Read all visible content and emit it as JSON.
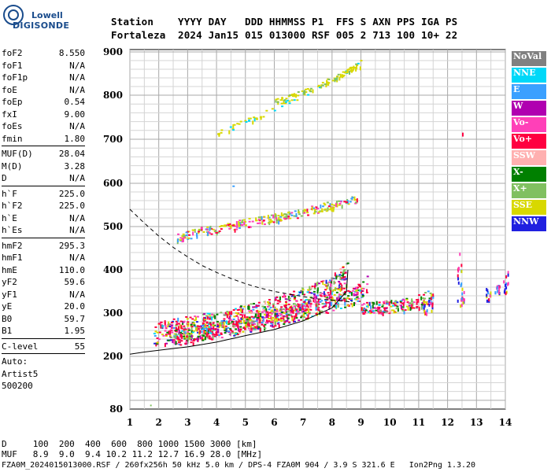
{
  "logo": {
    "line1": "Lowell",
    "line2": "DIGISONDE"
  },
  "header": {
    "line1": "Station    YYYY DAY   DDD HHMMSS P1  FFS S AXN PPS IGA PS",
    "line2": "Fortaleza  2024 Jan15 015 013000 RSF 005 2 713 100 10+ 22"
  },
  "params": [
    {
      "k": "foF2",
      "v": "8.550"
    },
    {
      "k": "foF1",
      "v": "N/A"
    },
    {
      "k": "foF1p",
      "v": "N/A"
    },
    {
      "k": "foE",
      "v": "N/A"
    },
    {
      "k": "foEp",
      "v": "0.54"
    },
    {
      "k": "fxI",
      "v": "9.00"
    },
    {
      "k": "foEs",
      "v": "N/A"
    },
    {
      "k": "fmin",
      "v": "1.80"
    },
    {
      "sep": true
    },
    {
      "k": "MUF(D)",
      "v": "28.04"
    },
    {
      "k": "M(D)",
      "v": "3.28"
    },
    {
      "k": "D",
      "v": "N/A"
    },
    {
      "sep": true
    },
    {
      "k": "h`F",
      "v": "225.0"
    },
    {
      "k": "h`F2",
      "v": "225.0"
    },
    {
      "k": "h`E",
      "v": "N/A"
    },
    {
      "k": "h`Es",
      "v": "N/A"
    },
    {
      "sep": true
    },
    {
      "k": "hmF2",
      "v": "295.3"
    },
    {
      "k": "hmF1",
      "v": "N/A"
    },
    {
      "k": "hmE",
      "v": "110.0"
    },
    {
      "k": "yF2",
      "v": "59.6"
    },
    {
      "k": "yF1",
      "v": "N/A"
    },
    {
      "k": "yE",
      "v": "20.0"
    },
    {
      "k": "B0",
      "v": "59.7"
    },
    {
      "k": "B1",
      "v": "1.95"
    },
    {
      "sep": true
    },
    {
      "k": "C-level",
      "v": "55"
    },
    {
      "sep": true
    },
    {
      "k": "Auto:",
      "v": ""
    },
    {
      "k": "Artist5",
      "v": ""
    },
    {
      "k": "500200",
      "v": ""
    }
  ],
  "legend": [
    {
      "label": "NoVal",
      "color": "#808080"
    },
    {
      "label": "NNE",
      "color": "#00d8f8"
    },
    {
      "label": "E",
      "color": "#3aa0ff"
    },
    {
      "label": "W",
      "color": "#b000b0"
    },
    {
      "label": "Vo-",
      "color": "#ff40b8"
    },
    {
      "label": "Vo+",
      "color": "#ff0040"
    },
    {
      "label": "SSW",
      "color": "#ffb0b0"
    },
    {
      "label": "X-",
      "color": "#008000"
    },
    {
      "label": "X+",
      "color": "#80c060"
    },
    {
      "label": "SSE",
      "color": "#d8d800"
    },
    {
      "label": "NNW",
      "color": "#2020e0"
    }
  ],
  "footer": {
    "line1": "D     100  200  400  600  800 1000 1500 3000 [km]",
    "line2": "MUF   8.9  9.0  9.4 10.2 11.2 12.7 16.9 28.0 [MHz]",
    "line3": "FZA0M_2024015013000.RSF / 260fx256h 50 kHz 5.0 km / DPS-4 FZA0M 904 / 3.9 S 321.6 E   Ion2Png 1.3.20"
  },
  "chart_data": {
    "type": "scatter",
    "xlim": [
      1,
      14
    ],
    "ylim": [
      80,
      900
    ],
    "x_ticks": [
      1,
      2,
      3,
      4,
      5,
      6,
      7,
      8,
      9,
      10,
      11,
      12,
      13,
      14
    ],
    "y_ticks": [
      80,
      200,
      300,
      400,
      500,
      600,
      700,
      800,
      900
    ],
    "grid": true,
    "profile_curve": {
      "x": [
        1.0,
        1.5,
        2.0,
        3.0,
        4.0,
        5.0,
        6.0,
        7.0,
        8.0,
        8.5,
        8.55
      ],
      "y": [
        205,
        210,
        214,
        222,
        233,
        248,
        262,
        282,
        312,
        350,
        400
      ]
    },
    "muf_curve": {
      "x": [
        1.0,
        1.5,
        2.0,
        2.5,
        3.0,
        3.5,
        4.0,
        4.5,
        5.0,
        5.5,
        6.0,
        6.5,
        7.0,
        7.5,
        8.0,
        8.5,
        8.6
      ],
      "y": [
        540,
        508,
        478,
        452,
        430,
        410,
        394,
        380,
        368,
        358,
        350,
        344,
        338,
        333,
        330,
        327,
        326
      ]
    },
    "traces": [
      {
        "name": "O-F2",
        "x": [
          1.8,
          2.5,
          3,
          3.5,
          4,
          4.5,
          5,
          5.5,
          6,
          6.5,
          7,
          7.5,
          8,
          8.5,
          8.55
        ],
        "y": [
          235,
          240,
          246,
          252,
          258,
          264,
          272,
          280,
          290,
          300,
          312,
          326,
          344,
          370,
          400
        ]
      },
      {
        "name": "X-F2",
        "x": [
          2.5,
          3,
          3.5,
          4,
          4.5,
          5,
          5.5,
          6,
          6.5,
          7,
          7.5,
          8,
          8.5,
          9,
          9.2
        ],
        "y": [
          232,
          236,
          242,
          248,
          254,
          260,
          268,
          276,
          284,
          292,
          300,
          310,
          320,
          338,
          355
        ]
      },
      {
        "name": "2F",
        "x": [
          2.6,
          3,
          3.5,
          4,
          4.5,
          5,
          5.5,
          6,
          6.5,
          7,
          7.5,
          8,
          8.5,
          8.9
        ],
        "y": [
          470,
          476,
          483,
          490,
          496,
          502,
          508,
          514,
          520,
          528,
          536,
          544,
          552,
          560
        ]
      },
      {
        "name": "3F",
        "x": [
          4,
          4.5,
          5,
          5.5,
          6,
          6.5,
          7,
          7.5,
          8,
          8.5,
          9
        ],
        "y": [
          710,
          724,
          738,
          752,
          768,
          784,
          800,
          818,
          836,
          852,
          870
        ]
      },
      {
        "name": "3F-upper",
        "x": [
          6,
          6.5,
          7,
          7.5,
          8,
          8.5,
          9
        ],
        "y": [
          784,
          794,
          806,
          818,
          836,
          852,
          880
        ]
      },
      {
        "name": "spread",
        "x": [
          9,
          9.5,
          10,
          10.5,
          11,
          11.4
        ],
        "y": [
          300,
          302,
          305,
          310,
          318,
          330
        ]
      }
    ]
  }
}
